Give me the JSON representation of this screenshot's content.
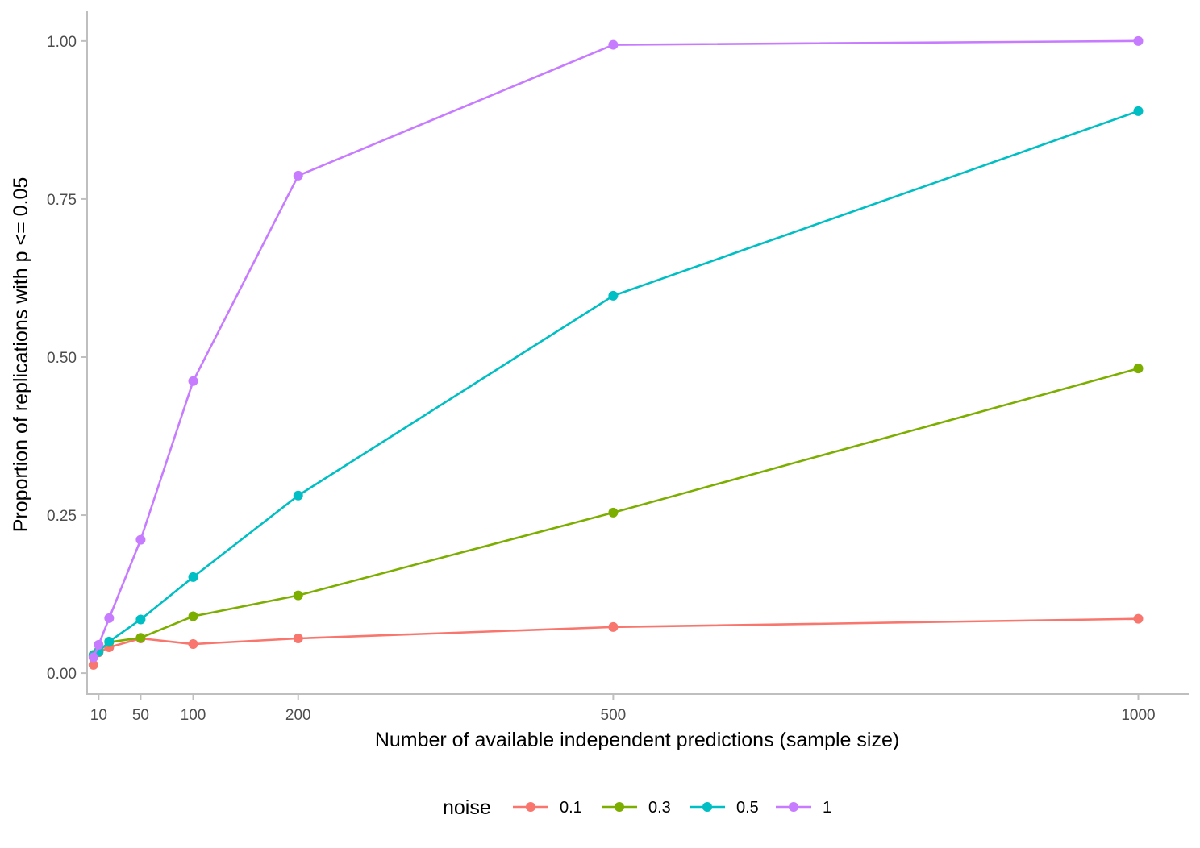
{
  "chart_data": {
    "type": "line",
    "xlabel": "Number of available independent predictions (sample size)",
    "ylabel": "Proportion of replications with p <= 0.05",
    "xlim": [
      -1,
      1048
    ],
    "ylim": [
      -0.033,
      1.047
    ],
    "x_ticks": [
      10,
      50,
      100,
      200,
      500,
      1000
    ],
    "x_tick_labels": [
      "10",
      "50",
      "100",
      "200",
      "500",
      "1000"
    ],
    "y_ticks": [
      0,
      0.25,
      0.5,
      0.75,
      1.0
    ],
    "y_tick_labels": [
      "0.00",
      "0.25",
      "0.50",
      "0.75",
      "1.00"
    ],
    "grid": false,
    "legend": {
      "title": "noise",
      "placement": "bottom"
    },
    "x": [
      5,
      10,
      20,
      50,
      100,
      200,
      500,
      1000
    ],
    "series": [
      {
        "name": "0.1",
        "color": "#f8766d",
        "values": [
          0.013,
          0.033,
          0.041,
          0.055,
          0.046,
          0.055,
          0.073,
          0.086
        ]
      },
      {
        "name": "0.3",
        "color": "#7cae00",
        "values": [
          0.029,
          0.035,
          0.049,
          0.056,
          0.09,
          0.123,
          0.254,
          0.482
        ]
      },
      {
        "name": "0.5",
        "color": "#00bfc4",
        "values": [
          0.028,
          0.034,
          0.05,
          0.085,
          0.152,
          0.281,
          0.597,
          0.889
        ]
      },
      {
        "name": "1",
        "color": "#c77cff",
        "values": [
          0.025,
          0.045,
          0.087,
          0.211,
          0.462,
          0.787,
          0.994,
          1.0
        ]
      }
    ]
  }
}
